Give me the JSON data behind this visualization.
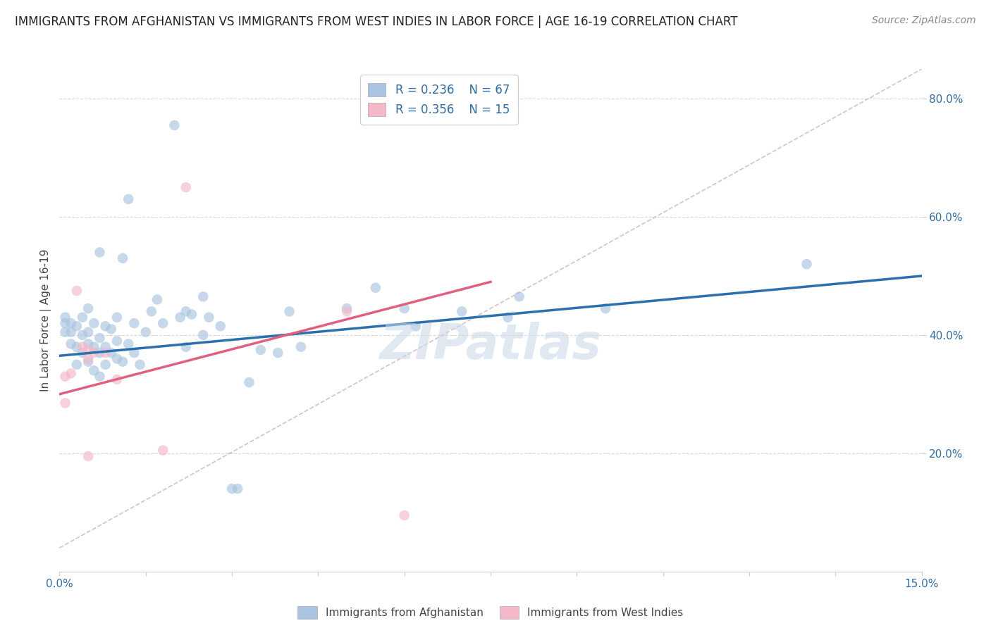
{
  "title": "IMMIGRANTS FROM AFGHANISTAN VS IMMIGRANTS FROM WEST INDIES IN LABOR FORCE | AGE 16-19 CORRELATION CHART",
  "source": "Source: ZipAtlas.com",
  "ylabel": "In Labor Force | Age 16-19",
  "xlim": [
    0.0,
    0.15
  ],
  "ylim": [
    0.0,
    0.85
  ],
  "ytick_vals": [
    0.2,
    0.4,
    0.6,
    0.8
  ],
  "xtick_vals": [
    0.0,
    0.15
  ],
  "blue_scatter_x": [
    0.001,
    0.001,
    0.001,
    0.002,
    0.002,
    0.002,
    0.003,
    0.003,
    0.003,
    0.004,
    0.004,
    0.004,
    0.005,
    0.005,
    0.005,
    0.005,
    0.006,
    0.006,
    0.006,
    0.007,
    0.007,
    0.007,
    0.007,
    0.008,
    0.008,
    0.008,
    0.009,
    0.009,
    0.01,
    0.01,
    0.01,
    0.011,
    0.011,
    0.012,
    0.012,
    0.013,
    0.013,
    0.014,
    0.015,
    0.016,
    0.017,
    0.018,
    0.02,
    0.021,
    0.022,
    0.022,
    0.023,
    0.025,
    0.025,
    0.026,
    0.028,
    0.03,
    0.031,
    0.033,
    0.035,
    0.038,
    0.04,
    0.042,
    0.05,
    0.055,
    0.06,
    0.062,
    0.07,
    0.078,
    0.08,
    0.095,
    0.13
  ],
  "blue_scatter_y": [
    0.405,
    0.42,
    0.43,
    0.385,
    0.405,
    0.42,
    0.35,
    0.38,
    0.415,
    0.37,
    0.4,
    0.43,
    0.355,
    0.385,
    0.405,
    0.445,
    0.34,
    0.38,
    0.42,
    0.33,
    0.37,
    0.395,
    0.54,
    0.35,
    0.38,
    0.415,
    0.37,
    0.41,
    0.36,
    0.39,
    0.43,
    0.355,
    0.53,
    0.385,
    0.63,
    0.37,
    0.42,
    0.35,
    0.405,
    0.44,
    0.46,
    0.42,
    0.755,
    0.43,
    0.38,
    0.44,
    0.435,
    0.4,
    0.465,
    0.43,
    0.415,
    0.14,
    0.14,
    0.32,
    0.375,
    0.37,
    0.44,
    0.38,
    0.445,
    0.48,
    0.445,
    0.415,
    0.44,
    0.43,
    0.465,
    0.445,
    0.52
  ],
  "pink_scatter_x": [
    0.001,
    0.001,
    0.002,
    0.003,
    0.004,
    0.005,
    0.005,
    0.005,
    0.006,
    0.008,
    0.01,
    0.018,
    0.022,
    0.05,
    0.06
  ],
  "pink_scatter_y": [
    0.33,
    0.285,
    0.335,
    0.475,
    0.38,
    0.375,
    0.36,
    0.195,
    0.37,
    0.37,
    0.325,
    0.205,
    0.65,
    0.44,
    0.095
  ],
  "blue_line_x": [
    0.0,
    0.15
  ],
  "blue_line_y": [
    0.365,
    0.5
  ],
  "pink_line_x": [
    0.0,
    0.075
  ],
  "pink_line_y": [
    0.3,
    0.49
  ],
  "diag_line_x": [
    0.0,
    0.15
  ],
  "diag_line_y": [
    0.04,
    0.85
  ],
  "blue_color": "#a8c4e0",
  "pink_color": "#f4b8c8",
  "blue_line_color": "#2c6fad",
  "pink_line_color": "#e06080",
  "diag_line_color": "#d0b0c0",
  "r_blue": "0.236",
  "n_blue": "67",
  "r_pink": "0.356",
  "n_pink": "15",
  "legend1": "Immigrants from Afghanistan",
  "legend2": "Immigrants from West Indies",
  "scatter_size": 110,
  "alpha": 0.65,
  "watermark": "ZIPatlas",
  "background_color": "#ffffff",
  "grid_color": "#d8d8d8"
}
